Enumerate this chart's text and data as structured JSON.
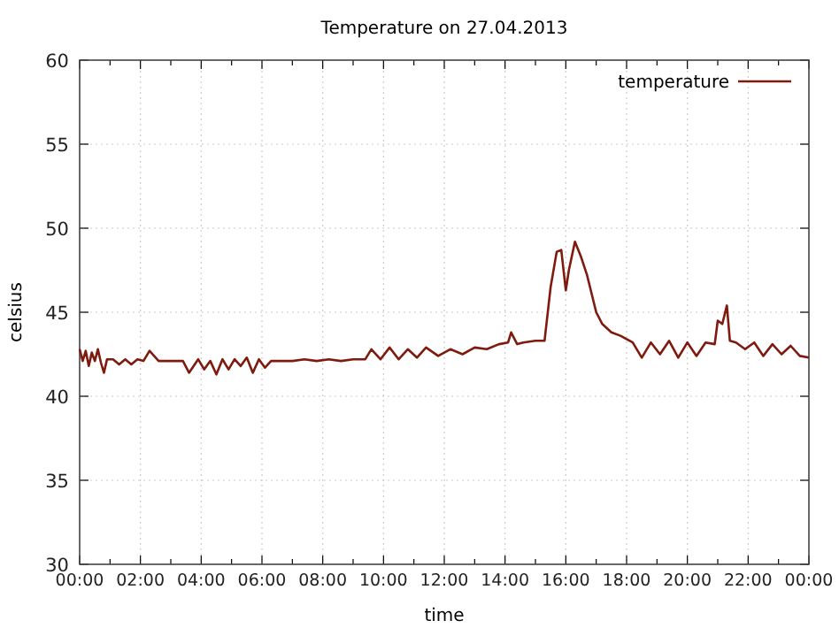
{
  "chart_data": {
    "type": "line",
    "title": "Temperature on 27.04.2013",
    "xlabel": "time",
    "ylabel": "celsius",
    "legend": "top right",
    "grid": true,
    "line_style": "solid",
    "marker": "none",
    "xlim": [
      0,
      24
    ],
    "xticks": [
      {
        "value": 0,
        "label": "00:00"
      },
      {
        "value": 1,
        "label": null
      },
      {
        "value": 2,
        "label": "02:00"
      },
      {
        "value": 3,
        "label": null
      },
      {
        "value": 4,
        "label": "04:00"
      },
      {
        "value": 5,
        "label": null
      },
      {
        "value": 6,
        "label": "06:00"
      },
      {
        "value": 7,
        "label": null
      },
      {
        "value": 8,
        "label": "08:00"
      },
      {
        "value": 9,
        "label": null
      },
      {
        "value": 10,
        "label": "10:00"
      },
      {
        "value": 11,
        "label": null
      },
      {
        "value": 12,
        "label": "12:00"
      },
      {
        "value": 13,
        "label": null
      },
      {
        "value": 14,
        "label": "14:00"
      },
      {
        "value": 15,
        "label": null
      },
      {
        "value": 16,
        "label": "16:00"
      },
      {
        "value": 17,
        "label": null
      },
      {
        "value": 18,
        "label": "18:00"
      },
      {
        "value": 19,
        "label": null
      },
      {
        "value": 20,
        "label": "20:00"
      },
      {
        "value": 21,
        "label": null
      },
      {
        "value": 22,
        "label": "22:00"
      },
      {
        "value": 23,
        "label": null
      },
      {
        "value": 24,
        "label": "00:00"
      }
    ],
    "ylim": [
      30,
      60
    ],
    "yticks": [
      30,
      35,
      40,
      45,
      50,
      55,
      60
    ],
    "series": [
      {
        "name": "temperature",
        "color": "#7f1a0e",
        "x": [
          0,
          0.1,
          0.2,
          0.3,
          0.4,
          0.5,
          0.6,
          0.7,
          0.8,
          0.9,
          1.1,
          1.3,
          1.5,
          1.7,
          1.9,
          2.1,
          2.3,
          2.6,
          3,
          3.4,
          3.6,
          3.9,
          4.1,
          4.3,
          4.5,
          4.7,
          4.9,
          5.1,
          5.3,
          5.5,
          5.7,
          5.9,
          6.1,
          6.3,
          6.6,
          7,
          7.4,
          7.8,
          8.2,
          8.6,
          9,
          9.4,
          9.6,
          9.9,
          10.2,
          10.5,
          10.8,
          11.1,
          11.4,
          11.8,
          12.2,
          12.6,
          13,
          13.4,
          13.8,
          14.1,
          14.2,
          14.4,
          14.6,
          15,
          15.3,
          15.5,
          15.7,
          15.85,
          16,
          16.1,
          16.3,
          16.5,
          16.7,
          17,
          17.2,
          17.5,
          17.8,
          18.2,
          18.5,
          18.8,
          19.1,
          19.4,
          19.7,
          20,
          20.3,
          20.6,
          20.9,
          21,
          21.15,
          21.3,
          21.4,
          21.6,
          21.9,
          22.2,
          22.5,
          22.8,
          23.1,
          23.4,
          23.7,
          24
        ],
        "values": [
          42.8,
          42.1,
          42.7,
          41.8,
          42.6,
          42.1,
          42.8,
          42,
          41.4,
          42.2,
          42.2,
          41.9,
          42.2,
          41.9,
          42.2,
          42.1,
          42.7,
          42.1,
          42.1,
          42.1,
          41.4,
          42.2,
          41.6,
          42.1,
          41.3,
          42.2,
          41.6,
          42.2,
          41.8,
          42.3,
          41.4,
          42.2,
          41.7,
          42.1,
          42.1,
          42.1,
          42.2,
          42.1,
          42.2,
          42.1,
          42.2,
          42.2,
          42.8,
          42.2,
          42.9,
          42.2,
          42.8,
          42.3,
          42.9,
          42.4,
          42.8,
          42.5,
          42.9,
          42.8,
          43.1,
          43.2,
          43.8,
          43.1,
          43.2,
          43.3,
          43.3,
          46.5,
          48.6,
          48.7,
          46.3,
          47.5,
          49.2,
          48.3,
          47.2,
          45,
          44.3,
          43.8,
          43.6,
          43.2,
          42.3,
          43.2,
          42.5,
          43.3,
          42.3,
          43.2,
          42.4,
          43.2,
          43.1,
          44.5,
          44.3,
          45.4,
          43.3,
          43.2,
          42.8,
          43.2,
          42.4,
          43.1,
          42.5,
          43,
          42.4,
          42.3
        ]
      }
    ]
  }
}
